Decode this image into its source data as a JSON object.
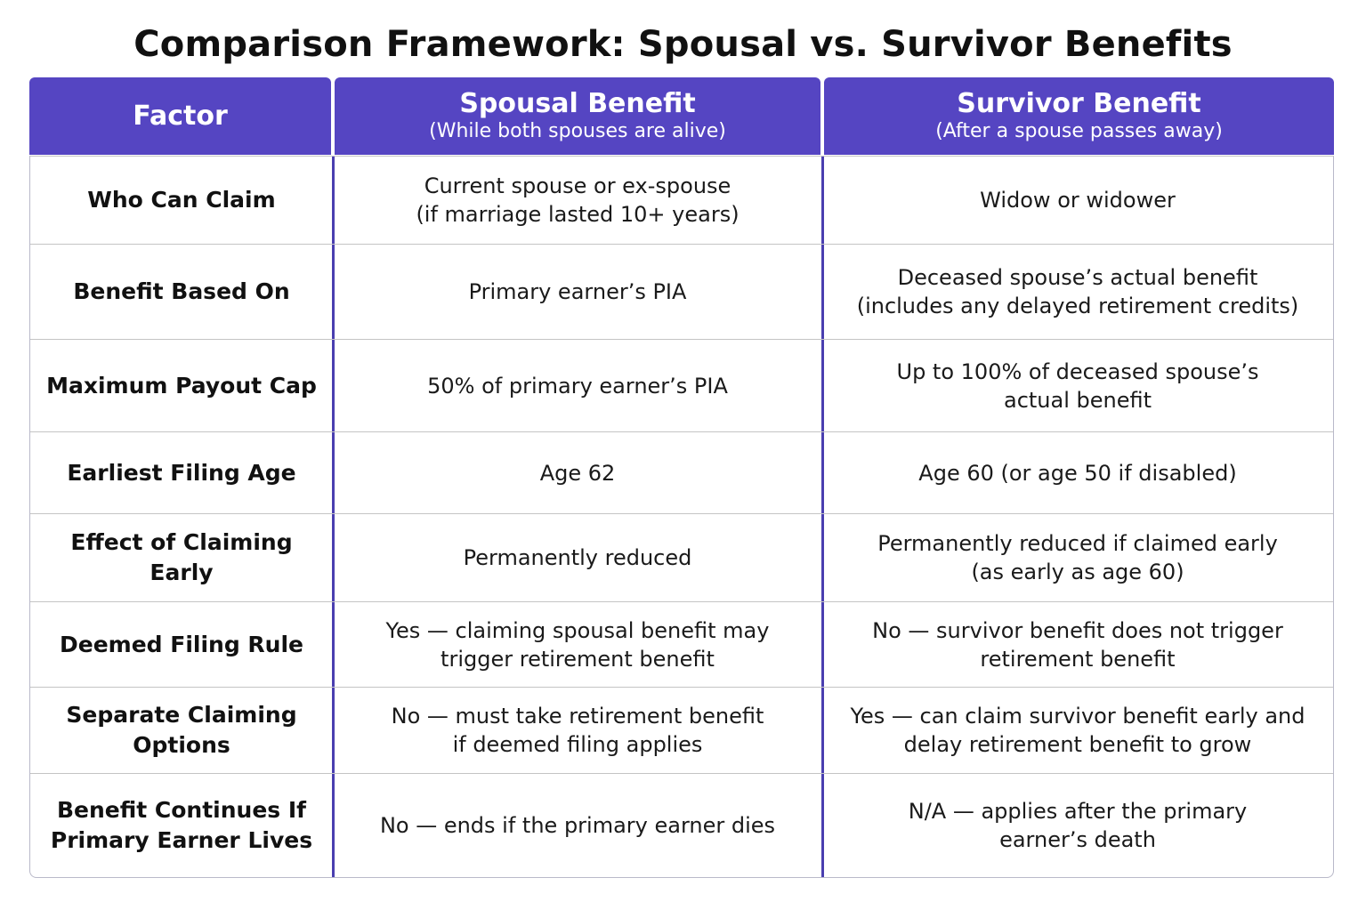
{
  "title": "Comparison Framework: Spousal vs. Survivor Benefits",
  "header": {
    "factor": "Factor",
    "spousal_title": "Spousal Benefit",
    "spousal_sub": "(While both spouses are alive)",
    "survivor_title": "Survivor Benefit",
    "survivor_sub": "(After a spouse passes away)"
  },
  "colors": {
    "header_bg": "#5545c2",
    "divider": "#4a3fb0"
  },
  "rows": [
    {
      "factor": "Who Can Claim",
      "spousal": "Current spouse or ex-spouse\n(if marriage lasted 10+ years)",
      "survivor": "Widow or widower"
    },
    {
      "factor": "Benefit Based On",
      "spousal": "Primary earner’s PIA",
      "survivor": "Deceased spouse’s actual benefit\n(includes any delayed retirement credits)"
    },
    {
      "factor": "Maximum Payout Cap",
      "spousal": "50% of primary earner’s PIA",
      "survivor": "Up to 100% of deceased spouse’s\nactual benefit"
    },
    {
      "factor": "Earliest Filing Age",
      "spousal": "Age 62",
      "survivor": "Age 60 (or age 50 if disabled)"
    },
    {
      "factor": "Effect of Claiming Early",
      "spousal": "Permanently reduced",
      "survivor": "Permanently reduced if claimed early\n(as early as age 60)"
    },
    {
      "factor": "Deemed Filing Rule",
      "spousal": "Yes — claiming spousal benefit may\ntrigger retirement benefit",
      "survivor": "No — survivor benefit does not trigger\nretirement benefit"
    },
    {
      "factor": "Separate Claiming Options",
      "spousal": "No — must take retirement benefit\nif deemed filing applies",
      "survivor": "Yes — can claim survivor benefit early and\ndelay retirement benefit to grow"
    },
    {
      "factor": "Benefit Continues If\nPrimary Earner Lives",
      "spousal": "No — ends if the primary earner dies",
      "survivor": "N/A — applies after the primary\nearner’s death"
    }
  ]
}
